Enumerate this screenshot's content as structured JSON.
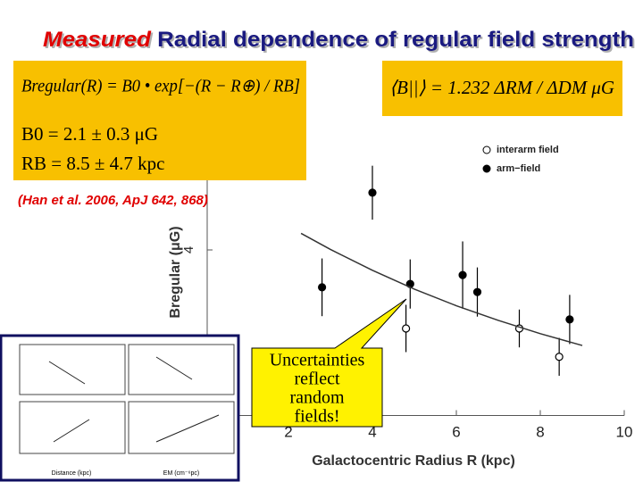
{
  "title": {
    "lead": "Measured",
    "rest": "Radial dependence of regular field strength"
  },
  "formula_box": [
    "Bregular(R) = B0 • exp[−(R − R⊕) / RB]",
    "B0 = 2.1 ± 0.3 μG",
    "RB = 8.5 ± 4.7 kpc"
  ],
  "formula_right": "⟨B||⟩ = 1.232 ΔRM / ΔDM μG",
  "citation": "(Han et al. 2006, ApJ 642, 868)",
  "callout": [
    "Uncertainties",
    "reflect",
    "random",
    "fields!"
  ],
  "inset": {
    "x_labels": [
      "Distance (kpc)",
      "EM (cm⁻⁶pc)"
    ]
  },
  "chart_data": {
    "type": "scatter",
    "x_label": "Galactocentric Radius R (kpc)",
    "y_label": "Bregular (μG)",
    "xlim": [
      0,
      10
    ],
    "xticks": [
      2,
      4,
      6,
      8,
      10
    ],
    "ylim": [
      0.5,
      6.5
    ],
    "yticks": [
      4
    ],
    "series": [
      {
        "name": "interarm field",
        "color": "#000000",
        "marker": "open",
        "x": [
          4.8,
          7.5,
          8.45
        ],
        "values": [
          2.34,
          2.34,
          1.74
        ],
        "errors": [
          0.5,
          0.4,
          0.4
        ]
      },
      {
        "name": "arm−field",
        "color": "#000000",
        "marker": "filled",
        "x": [
          2.8,
          4.0,
          4.9,
          6.15,
          6.5,
          8.7
        ],
        "values": [
          3.21,
          5.21,
          3.28,
          3.47,
          3.11,
          2.53
        ],
        "errors": [
          0.61,
          0.57,
          0.52,
          0.71,
          0.52,
          0.52
        ]
      },
      {
        "color": "#333333",
        "marker": "line",
        "x": [
          2.3,
          3,
          4,
          5,
          6,
          7,
          8,
          9
        ],
        "values": [
          4.35,
          4.01,
          3.57,
          3.17,
          2.82,
          2.51,
          2.23,
          1.98
        ]
      }
    ]
  }
}
